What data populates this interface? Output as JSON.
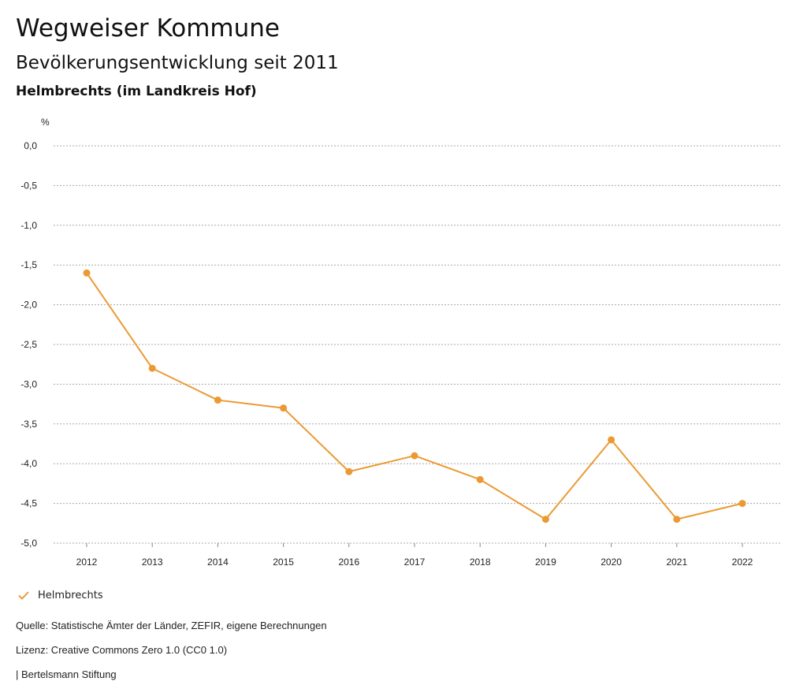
{
  "header": {
    "title": "Wegweiser Kommune",
    "subtitle": "Bevölkerungsentwicklung seit 2011",
    "region": "Helmbrechts (im Landkreis Hof)"
  },
  "chart_data": {
    "type": "line",
    "ylabel": "%",
    "xlabel": "",
    "ylim": [
      -5.0,
      0.0
    ],
    "yticks": [
      "0,0",
      "-0,5",
      "-1,0",
      "-1,5",
      "-2,0",
      "-2,5",
      "-3,0",
      "-3,5",
      "-4,0",
      "-4,5",
      "-5,0"
    ],
    "ytick_values": [
      0,
      -0.5,
      -1.0,
      -1.5,
      -2.0,
      -2.5,
      -3.0,
      -3.5,
      -4.0,
      -4.5,
      -5.0
    ],
    "categories": [
      "2012",
      "2013",
      "2014",
      "2015",
      "2016",
      "2017",
      "2018",
      "2019",
      "2020",
      "2021",
      "2022"
    ],
    "series": [
      {
        "name": "Helmbrechts",
        "color": "#EB9A33",
        "values": [
          -1.6,
          -2.8,
          -3.2,
          -3.3,
          -4.1,
          -3.9,
          -4.2,
          -4.7,
          -3.7,
          -4.7,
          -4.5
        ]
      }
    ],
    "grid": true,
    "legend": "bottom-left"
  },
  "legend": {
    "label": "Helmbrechts",
    "icon": "check-icon"
  },
  "footer": {
    "source": "Quelle: Statistische Ämter der Länder, ZEFIR, eigene Berechnungen",
    "license": "Lizenz: Creative Commons Zero 1.0 (CC0 1.0)",
    "publisher": "| Bertelsmann Stiftung"
  }
}
